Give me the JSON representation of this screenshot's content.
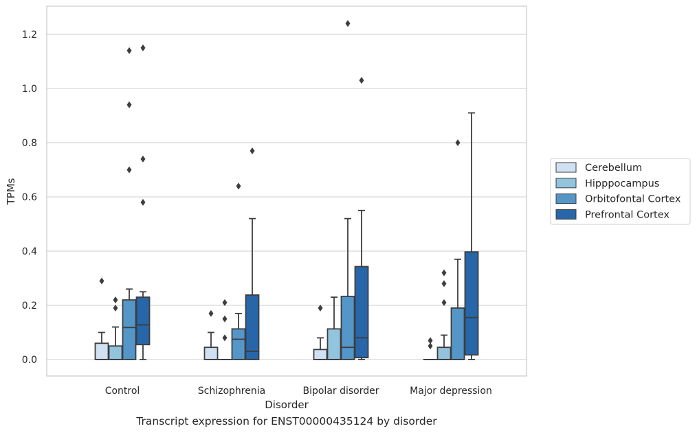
{
  "caption": "Transcript expression for ENST00000435124 by disorder",
  "chart_data": {
    "type": "box",
    "xlabel": "Disorder",
    "ylabel": "TPMs",
    "ylim": [
      -0.06,
      1.31
    ],
    "yticks": [
      0.0,
      0.2,
      0.4,
      0.6,
      0.8,
      1.0,
      1.2
    ],
    "ytick_labels": [
      "0.0",
      "0.2",
      "0.4",
      "0.6",
      "0.8",
      "1.0",
      "1.2"
    ],
    "grid": "horizontal",
    "legend_position": "right",
    "categories": [
      "Control",
      "Schizophrenia",
      "Bipolar disorder",
      "Major depression"
    ],
    "series": [
      {
        "name": "Cerebellum",
        "color": "#cfe1f2",
        "boxes": [
          {
            "whisker_low": 0.0,
            "q1": 0.0,
            "median": 0.0,
            "q3": 0.06,
            "whisker_high": 0.1,
            "outliers": [
              0.29
            ]
          },
          {
            "whisker_low": 0.0,
            "q1": 0.0,
            "median": 0.0,
            "q3": 0.045,
            "whisker_high": 0.1,
            "outliers": [
              0.17
            ]
          },
          {
            "whisker_low": 0.0,
            "q1": 0.0,
            "median": 0.0,
            "q3": 0.037,
            "whisker_high": 0.08,
            "outliers": [
              0.19
            ]
          },
          {
            "whisker_low": 0.0,
            "q1": 0.0,
            "median": 0.0,
            "q3": 0.0,
            "whisker_high": 0.0,
            "outliers": [
              0.05,
              0.07
            ]
          }
        ]
      },
      {
        "name": "Hipppocampus",
        "color": "#93c4de",
        "boxes": [
          {
            "whisker_low": 0.0,
            "q1": 0.0,
            "median": 0.0,
            "q3": 0.05,
            "whisker_high": 0.12,
            "outliers": [
              0.19,
              0.22
            ]
          },
          {
            "whisker_low": 0.0,
            "q1": 0.0,
            "median": 0.0,
            "q3": 0.0,
            "whisker_high": 0.0,
            "outliers": [
              0.08,
              0.15,
              0.21
            ]
          },
          {
            "whisker_low": 0.0,
            "q1": 0.0,
            "median": 0.0,
            "q3": 0.113,
            "whisker_high": 0.23,
            "outliers": []
          },
          {
            "whisker_low": 0.0,
            "q1": 0.0,
            "median": 0.0,
            "q3": 0.045,
            "whisker_high": 0.09,
            "outliers": [
              0.21,
              0.28,
              0.32
            ]
          }
        ]
      },
      {
        "name": "Orbitofontal Cortex",
        "color": "#5596c8",
        "boxes": [
          {
            "whisker_low": 0.0,
            "q1": 0.0,
            "median": 0.118,
            "q3": 0.22,
            "whisker_high": 0.26,
            "outliers": [
              0.7,
              0.94,
              1.14
            ]
          },
          {
            "whisker_low": 0.0,
            "q1": 0.0,
            "median": 0.075,
            "q3": 0.113,
            "whisker_high": 0.17,
            "outliers": [
              0.64
            ]
          },
          {
            "whisker_low": 0.0,
            "q1": 0.0,
            "median": 0.045,
            "q3": 0.233,
            "whisker_high": 0.52,
            "outliers": [
              1.24
            ]
          },
          {
            "whisker_low": 0.0,
            "q1": 0.0,
            "median": 0.0,
            "q3": 0.19,
            "whisker_high": 0.37,
            "outliers": [
              0.8
            ]
          }
        ]
      },
      {
        "name": "Prefrontal Cortex",
        "color": "#2766a8",
        "boxes": [
          {
            "whisker_low": 0.0,
            "q1": 0.055,
            "median": 0.128,
            "q3": 0.23,
            "whisker_high": 0.25,
            "outliers": [
              0.58,
              0.74,
              1.15
            ]
          },
          {
            "whisker_low": 0.0,
            "q1": 0.0,
            "median": 0.03,
            "q3": 0.238,
            "whisker_high": 0.52,
            "outliers": [
              0.77
            ]
          },
          {
            "whisker_low": 0.0,
            "q1": 0.007,
            "median": 0.08,
            "q3": 0.343,
            "whisker_high": 0.55,
            "outliers": [
              1.03
            ]
          },
          {
            "whisker_low": 0.0,
            "q1": 0.017,
            "median": 0.155,
            "q3": 0.397,
            "whisker_high": 0.91,
            "outliers": []
          }
        ]
      }
    ]
  }
}
